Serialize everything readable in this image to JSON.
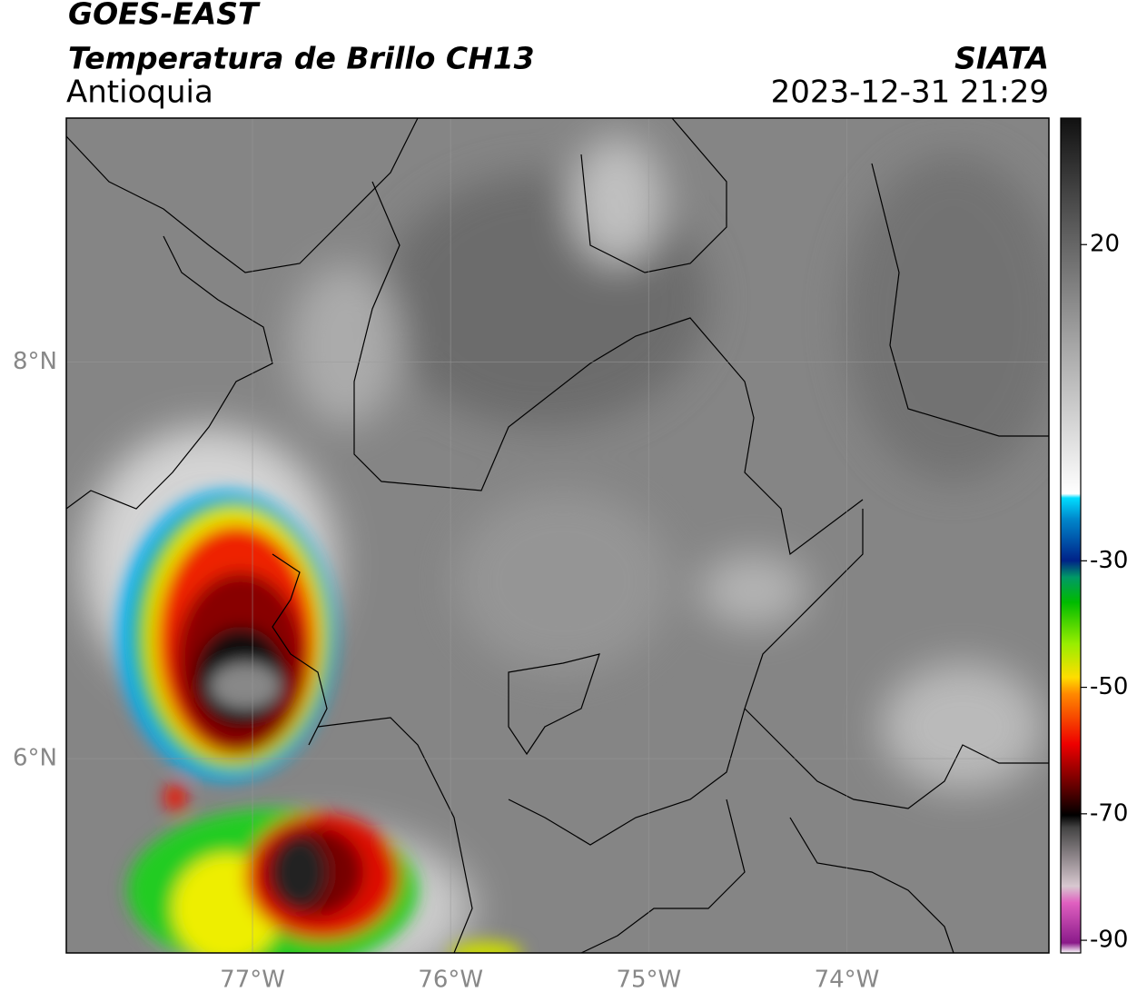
{
  "header": {
    "title": "GOES-EAST",
    "subtitle": "Temperatura de Brillo CH13",
    "region": "Antioquia",
    "source": "SIATA",
    "datetime": "2023-12-31 21:29"
  },
  "map": {
    "xlim": [
      -77.94,
      -72.98
    ],
    "ylim": [
      5.02,
      9.23
    ],
    "xticks": [
      {
        "value": -77,
        "label": "77°W"
      },
      {
        "value": -76,
        "label": "76°W"
      },
      {
        "value": -75,
        "label": "75°W"
      },
      {
        "value": -74,
        "label": "74°W"
      }
    ],
    "yticks": [
      {
        "value": 6,
        "label": "6°N"
      },
      {
        "value": 8,
        "label": "8°N"
      }
    ],
    "grid": true
  },
  "colorbar": {
    "lim": [
      -92,
      40
    ],
    "ticks": [
      20,
      -30,
      -50,
      -70,
      -90
    ]
  }
}
